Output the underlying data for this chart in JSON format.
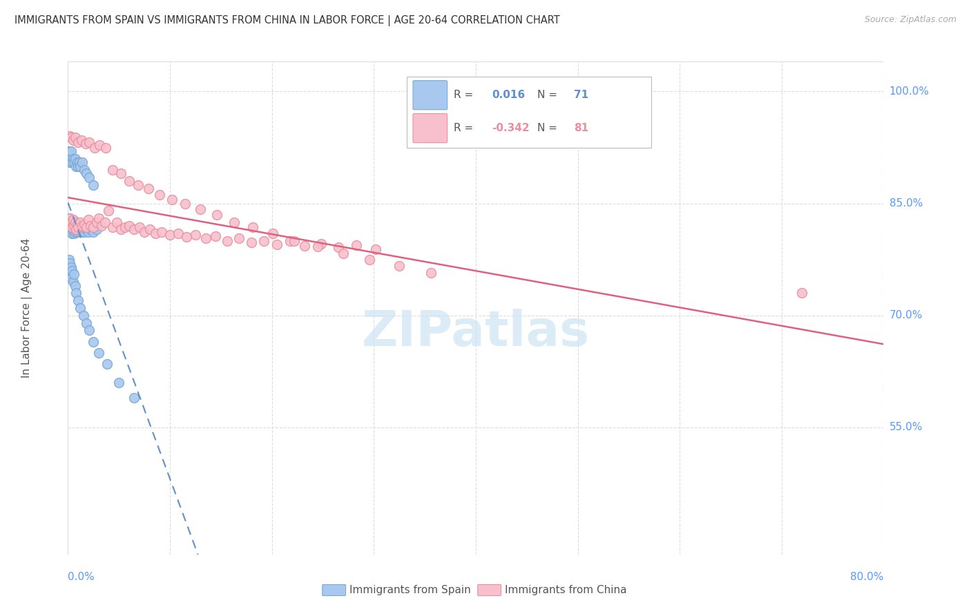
{
  "title": "IMMIGRANTS FROM SPAIN VS IMMIGRANTS FROM CHINA IN LABOR FORCE | AGE 20-64 CORRELATION CHART",
  "source": "Source: ZipAtlas.com",
  "ylabel": "In Labor Force | Age 20-64",
  "ytick_positions": [
    0.55,
    0.7,
    0.85,
    1.0
  ],
  "ytick_labels": [
    "55.0%",
    "70.0%",
    "85.0%",
    "100.0%"
  ],
  "xtick_left_label": "0.0%",
  "xtick_right_label": "80.0%",
  "xmin": 0.0,
  "xmax": 0.8,
  "ymin": 0.38,
  "ymax": 1.04,
  "color_spain_fill": "#a8c8f0",
  "color_spain_edge": "#7aaad0",
  "color_china_fill": "#f8c0cc",
  "color_china_edge": "#e890a0",
  "color_spain_trendline": "#6090c8",
  "color_china_trendline": "#e06080",
  "color_grid": "#dddddd",
  "color_tick_labels": "#5599ff",
  "color_title": "#333333",
  "color_source": "#aaaaaa",
  "color_ylabel": "#555555",
  "color_watermark": "#cce4f5",
  "legend_r_spain": "0.016",
  "legend_n_spain": "71",
  "legend_r_china": "-0.342",
  "legend_n_china": "81",
  "spain_x": [
    0.001,
    0.001,
    0.001,
    0.002,
    0.002,
    0.002,
    0.003,
    0.003,
    0.004,
    0.004,
    0.005,
    0.005,
    0.006,
    0.006,
    0.007,
    0.007,
    0.008,
    0.009,
    0.01,
    0.011,
    0.012,
    0.013,
    0.014,
    0.015,
    0.016,
    0.018,
    0.02,
    0.022,
    0.025,
    0.028,
    0.001,
    0.001,
    0.002,
    0.002,
    0.003,
    0.003,
    0.004,
    0.005,
    0.006,
    0.007,
    0.008,
    0.009,
    0.01,
    0.011,
    0.012,
    0.014,
    0.016,
    0.018,
    0.021,
    0.025,
    0.001,
    0.001,
    0.002,
    0.002,
    0.003,
    0.003,
    0.004,
    0.005,
    0.006,
    0.007,
    0.008,
    0.01,
    0.012,
    0.015,
    0.018,
    0.021,
    0.025,
    0.03,
    0.038,
    0.05,
    0.065
  ],
  "spain_y": [
    0.82,
    0.825,
    0.83,
    0.815,
    0.822,
    0.828,
    0.818,
    0.825,
    0.81,
    0.82,
    0.815,
    0.822,
    0.81,
    0.818,
    0.812,
    0.82,
    0.815,
    0.812,
    0.818,
    0.815,
    0.812,
    0.815,
    0.812,
    0.815,
    0.812,
    0.815,
    0.812,
    0.815,
    0.812,
    0.815,
    0.91,
    0.92,
    0.905,
    0.915,
    0.91,
    0.92,
    0.905,
    0.91,
    0.905,
    0.91,
    0.9,
    0.905,
    0.9,
    0.905,
    0.9,
    0.905,
    0.895,
    0.89,
    0.885,
    0.875,
    0.775,
    0.76,
    0.77,
    0.755,
    0.765,
    0.75,
    0.76,
    0.745,
    0.755,
    0.74,
    0.73,
    0.72,
    0.71,
    0.7,
    0.69,
    0.68,
    0.665,
    0.65,
    0.635,
    0.61,
    0.59
  ],
  "china_x": [
    0.001,
    0.002,
    0.003,
    0.004,
    0.005,
    0.006,
    0.007,
    0.008,
    0.009,
    0.01,
    0.012,
    0.014,
    0.016,
    0.018,
    0.02,
    0.022,
    0.025,
    0.028,
    0.03,
    0.033,
    0.036,
    0.04,
    0.044,
    0.048,
    0.052,
    0.056,
    0.06,
    0.065,
    0.07,
    0.075,
    0.08,
    0.086,
    0.092,
    0.1,
    0.108,
    0.116,
    0.125,
    0.135,
    0.145,
    0.156,
    0.168,
    0.18,
    0.192,
    0.205,
    0.218,
    0.232,
    0.248,
    0.265,
    0.283,
    0.302,
    0.002,
    0.003,
    0.005,
    0.007,
    0.01,
    0.013,
    0.017,
    0.021,
    0.026,
    0.031,
    0.037,
    0.044,
    0.052,
    0.06,
    0.069,
    0.079,
    0.09,
    0.102,
    0.115,
    0.13,
    0.146,
    0.163,
    0.181,
    0.201,
    0.222,
    0.245,
    0.27,
    0.296,
    0.325,
    0.356,
    0.72
  ],
  "china_y": [
    0.82,
    0.83,
    0.825,
    0.818,
    0.828,
    0.82,
    0.825,
    0.815,
    0.822,
    0.818,
    0.825,
    0.82,
    0.822,
    0.818,
    0.828,
    0.82,
    0.818,
    0.825,
    0.83,
    0.82,
    0.825,
    0.84,
    0.818,
    0.825,
    0.815,
    0.818,
    0.82,
    0.815,
    0.818,
    0.812,
    0.815,
    0.81,
    0.812,
    0.808,
    0.81,
    0.805,
    0.808,
    0.803,
    0.806,
    0.8,
    0.803,
    0.798,
    0.8,
    0.795,
    0.8,
    0.793,
    0.796,
    0.791,
    0.794,
    0.789,
    0.94,
    0.938,
    0.935,
    0.938,
    0.932,
    0.935,
    0.93,
    0.932,
    0.925,
    0.928,
    0.925,
    0.895,
    0.89,
    0.88,
    0.875,
    0.87,
    0.862,
    0.855,
    0.85,
    0.842,
    0.835,
    0.825,
    0.818,
    0.81,
    0.8,
    0.792,
    0.783,
    0.775,
    0.766,
    0.757,
    0.73
  ]
}
